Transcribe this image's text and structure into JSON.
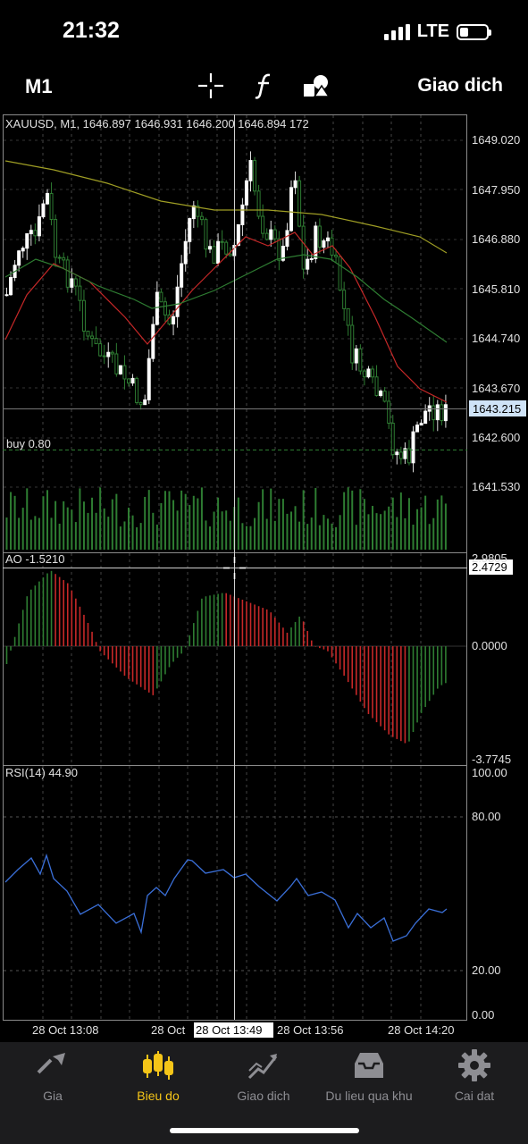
{
  "status_bar": {
    "time": "21:32",
    "network": "LTE"
  },
  "toolbar": {
    "timeframe": "M1",
    "trade_label": "Giao dich",
    "icons": [
      "crosshair-icon",
      "function-icon",
      "objects-icon"
    ]
  },
  "chart_header": {
    "text": "XAUUSD, M1, 1646.897 1646.931 1646.200 1646.894 172"
  },
  "price_axis": {
    "labels": [
      "1649.020",
      "1647.950",
      "1646.880",
      "1645.810",
      "1644.740",
      "1643.670",
      "1642.600",
      "1641.530"
    ],
    "current_price": "1643.215"
  },
  "buy_line": {
    "label": "buy 0.80"
  },
  "ao_panel": {
    "label": "AO -1.5210",
    "axis_labels": [
      "2.9805",
      "0.0000",
      "-3.7745"
    ],
    "crosshair_value": "2.4729"
  },
  "rsi_panel": {
    "label": "RSI(14) 44.90",
    "axis_labels": [
      "100.00",
      "80.00",
      "20.00",
      "0.00"
    ]
  },
  "time_axis": {
    "labels": [
      "28 Oct 13:08",
      "28 Oct",
      "28 Oct 13:56",
      "28 Oct 14:20"
    ],
    "crosshair_time": "28 Oct 13:49"
  },
  "tabs": [
    {
      "label": "Gia",
      "icon": "quotes-arrows-icon",
      "active": false
    },
    {
      "label": "Bieu do",
      "icon": "candlestick-icon",
      "active": true
    },
    {
      "label": "Giao dich",
      "icon": "trade-chart-icon",
      "active": false
    },
    {
      "label": "Du lieu qua khu",
      "icon": "history-inbox-icon",
      "active": false
    },
    {
      "label": "Cai dat",
      "icon": "gear-icon",
      "active": false
    }
  ],
  "colors": {
    "bull": "#ffffff",
    "bear_outline": "#2e7d32",
    "ma_fast": "#c62828",
    "ma_mid": "#2e7d32",
    "ma_slow": "#9e9d24",
    "ao_up": "#2e7d32",
    "ao_down": "#c62828",
    "rsi_line": "#3a6fd8",
    "active_tab": "#f5c518"
  }
}
